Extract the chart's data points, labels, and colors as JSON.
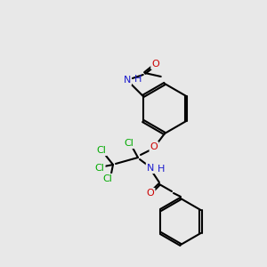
{
  "bg_color": "#e8e8e8",
  "bond_color": "#000000",
  "bond_lw": 1.5,
  "atom_colors": {
    "N": "#1a1acd",
    "O": "#cc0000",
    "Cl": "#00aa00",
    "C": "#000000",
    "H": "#1a1acd"
  },
  "font_size": 9,
  "font_size_small": 8
}
